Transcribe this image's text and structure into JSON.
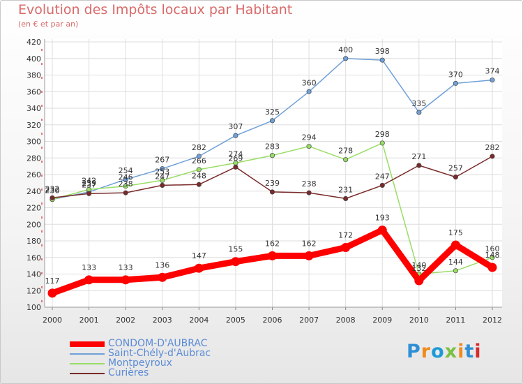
{
  "title": "Evolution des Impôts locaux par Habitant",
  "subtitle": "(en € et par an)",
  "logo": {
    "text": "Proxiti",
    "colors": [
      "#2e8fd6",
      "#f08a1c",
      "#1e9ad6",
      "#7ac143",
      "#f08a1c",
      "#2e8fd6",
      "#d92a2a"
    ]
  },
  "chart_data": {
    "type": "line",
    "x": [
      "2000",
      "2001",
      "2002",
      "2003",
      "2004",
      "2005",
      "2006",
      "2007",
      "2008",
      "2009",
      "2010",
      "2011",
      "2012"
    ],
    "ylim": [
      100,
      420
    ],
    "yticks": [
      "100",
      "120",
      "140",
      "160",
      "180",
      "200",
      "220",
      "240",
      "260",
      "280",
      "300",
      "320",
      "340",
      "360",
      "380",
      "400",
      "420"
    ],
    "grid": true,
    "legend_position": "bottom-left",
    "series": [
      {
        "name": "CONDOM-D'AUBRAC",
        "color": "#ff0000",
        "values": [
          117,
          133,
          133,
          136,
          147,
          155,
          162,
          162,
          172,
          193,
          132,
          175,
          148
        ],
        "labels": [
          "117",
          "133",
          "133",
          "136",
          "147",
          "155",
          "162",
          "162",
          "172",
          "193",
          "132",
          "175",
          "148"
        ]
      },
      {
        "name": "Saint-Chély-d'Aubrac",
        "color": "#6fa0d8",
        "values": [
          230,
          239,
          254,
          267,
          282,
          307,
          325,
          360,
          400,
          398,
          335,
          370,
          374
        ],
        "labels": [
          "230",
          "239",
          "254",
          "267",
          "282",
          "307",
          "325",
          "360",
          "400",
          "398",
          "335",
          "370",
          "374"
        ]
      },
      {
        "name": "Montpeyroux",
        "color": "#99dd66",
        "values": [
          230,
          242,
          246,
          253,
          266,
          274,
          283,
          294,
          278,
          298,
          140,
          144,
          160
        ],
        "labels": [
          "230",
          "242",
          "246",
          "253",
          "266",
          "274",
          "283",
          "294",
          "278",
          "298",
          "140",
          "144",
          "160"
        ]
      },
      {
        "name": "Curières",
        "color": "#7a2a2a",
        "values": [
          232,
          237,
          238,
          247,
          248,
          269,
          239,
          238,
          231,
          247,
          271,
          257,
          282
        ],
        "labels": [
          "232",
          "237",
          "238",
          "247",
          "248",
          "269",
          "239",
          "238",
          "231",
          "247",
          "271",
          "257",
          "282"
        ]
      }
    ]
  }
}
